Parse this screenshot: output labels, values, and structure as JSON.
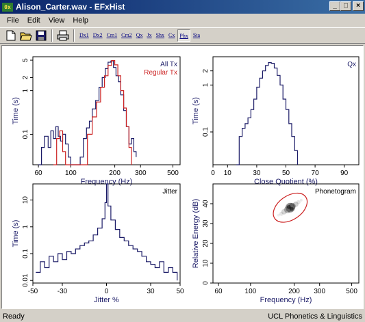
{
  "window": {
    "app_icon_text": "0x",
    "title": "Alison_Carter.wav - EFxHist",
    "minimize": "_",
    "maximize": "□",
    "close": "×"
  },
  "menu": [
    {
      "label": "File"
    },
    {
      "label": "Edit"
    },
    {
      "label": "View"
    },
    {
      "label": "Help"
    }
  ],
  "toolbar": {
    "icons": [
      "new-file-icon",
      "open-folder-icon",
      "save-disk-icon",
      "printer-icon"
    ],
    "buttons": [
      {
        "label": "Dx1",
        "pressed": false
      },
      {
        "label": "Dx2",
        "pressed": false
      },
      {
        "label": "Cm1",
        "pressed": false
      },
      {
        "label": "Cm2",
        "pressed": false
      },
      {
        "label": "Qx",
        "pressed": false
      },
      {
        "label": "Jx",
        "pressed": false
      },
      {
        "label": "Shx",
        "pressed": false
      },
      {
        "label": "Cx",
        "pressed": false
      },
      {
        "label": "Phx",
        "pressed": true
      },
      {
        "label": "Sta",
        "pressed": false
      }
    ]
  },
  "status": {
    "left": "Ready",
    "right": "UCL Phonetics & Linguistics"
  },
  "colors": {
    "all_series": "#1a1a66",
    "regular_series": "#cc2222",
    "ellipse": "#cc2222"
  },
  "chart_data": [
    {
      "type": "line",
      "panel": "frequency-histogram",
      "xlabel": "Frequency (Hz)",
      "ylabel": "Time (s)",
      "x_scale": "log",
      "y_scale": "log",
      "xticks": [
        "60",
        "100",
        "200",
        "300",
        "500"
      ],
      "yticks": [
        "5",
        "2",
        "1",
        "0.1"
      ],
      "series": [
        {
          "name": "All Tx",
          "color": "#1a1a66",
          "x": [
            60,
            63,
            66,
            70,
            73,
            76,
            79,
            82,
            85,
            88,
            92,
            96,
            100,
            104,
            110,
            116,
            122,
            128,
            134,
            140,
            148,
            156,
            164,
            172,
            180,
            188,
            196,
            204,
            212,
            220,
            230,
            240,
            250,
            260,
            270,
            280
          ],
          "y": [
            0.02,
            0.05,
            0.09,
            0.05,
            0.12,
            0.08,
            0.15,
            0.09,
            0.07,
            0.1,
            0.06,
            0.03,
            0.02,
            0.02,
            0.02,
            0.03,
            0.08,
            0.14,
            0.2,
            0.38,
            0.6,
            1.2,
            2.0,
            3.2,
            4.5,
            4.8,
            3.4,
            2.2,
            1.6,
            0.8,
            0.35,
            0.15,
            0.06,
            0.08,
            0.04,
            0.03
          ]
        },
        {
          "name": "Regular Tx",
          "color": "#cc2222",
          "x": [
            76,
            80,
            84,
            88,
            92,
            120,
            130,
            140,
            150,
            160,
            170,
            180,
            190,
            200,
            210,
            220,
            230,
            240,
            250,
            260
          ],
          "y": [
            0.02,
            0.08,
            0.12,
            0.04,
            0.02,
            0.02,
            0.1,
            0.25,
            0.55,
            1.2,
            2.2,
            3.8,
            4.9,
            3.9,
            2.2,
            1.0,
            0.4,
            0.15,
            0.05,
            0.02
          ]
        }
      ]
    },
    {
      "type": "line",
      "panel": "qx-histogram",
      "xlabel": "Close Quotient (%)",
      "ylabel": "Time (s)",
      "x_scale": "linear",
      "y_scale": "log",
      "xlim": [
        0,
        100
      ],
      "xticks": [
        "0",
        "10",
        "30",
        "50",
        "70",
        "90"
      ],
      "yticks": [
        "2",
        "1",
        "0.1"
      ],
      "series": [
        {
          "name": "Qx",
          "color": "#1a1a66",
          "x": [
            16,
            18,
            20,
            22,
            24,
            26,
            28,
            30,
            32,
            34,
            36,
            38,
            40,
            42,
            44,
            46,
            48,
            50,
            52,
            54,
            56,
            58
          ],
          "y": [
            0.02,
            0.08,
            0.12,
            0.15,
            0.2,
            0.3,
            0.5,
            0.9,
            1.4,
            2.0,
            2.6,
            3.0,
            2.9,
            2.3,
            1.6,
            1.0,
            0.5,
            0.3,
            0.15,
            0.08,
            0.04,
            0.02
          ]
        }
      ]
    },
    {
      "type": "line",
      "panel": "jitter-histogram",
      "xlabel": "Jitter %",
      "ylabel": "Time (s)",
      "x_scale": "linear",
      "y_scale": "log",
      "xlim": [
        -50,
        50
      ],
      "xticks": [
        "-50",
        "-30",
        "0",
        "30",
        "50"
      ],
      "yticks": [
        "10",
        "1",
        "0.1",
        "0.01"
      ],
      "series": [
        {
          "name": "Jitter",
          "color": "#1a1a66",
          "x": [
            -48,
            -45,
            -42,
            -39,
            -36,
            -33,
            -30,
            -27,
            -24,
            -21,
            -18,
            -15,
            -12,
            -9,
            -6,
            -3,
            -1,
            0,
            1,
            3,
            6,
            9,
            12,
            15,
            18,
            21,
            24,
            27,
            30,
            33,
            36,
            39,
            42,
            45,
            48
          ],
          "y": [
            0.02,
            0.05,
            0.03,
            0.08,
            0.05,
            0.1,
            0.06,
            0.12,
            0.1,
            0.15,
            0.2,
            0.25,
            0.3,
            0.5,
            0.9,
            2.0,
            8.0,
            40,
            6.0,
            1.8,
            0.8,
            0.4,
            0.3,
            0.2,
            0.15,
            0.12,
            0.08,
            0.05,
            0.04,
            0.03,
            0.05,
            0.02,
            0.03,
            0.02,
            0.01
          ]
        }
      ]
    },
    {
      "type": "scatter",
      "panel": "phonetogram",
      "xlabel": "Frequency (Hz)",
      "ylabel": "Relative Energy (dB)",
      "x_scale": "log",
      "y_scale": "linear",
      "ylim": [
        0,
        50
      ],
      "xticks": [
        "60",
        "100",
        "200",
        "300",
        "500"
      ],
      "yticks": [
        "0",
        "10",
        "20",
        "30",
        "40"
      ],
      "series": [
        {
          "name": "Phonetogram",
          "color": "#000000",
          "center": {
            "x": 188,
            "y": 38
          },
          "ellipse_semi_axes": {
            "x_ratio": 1.35,
            "y_db": 6
          }
        }
      ]
    }
  ]
}
